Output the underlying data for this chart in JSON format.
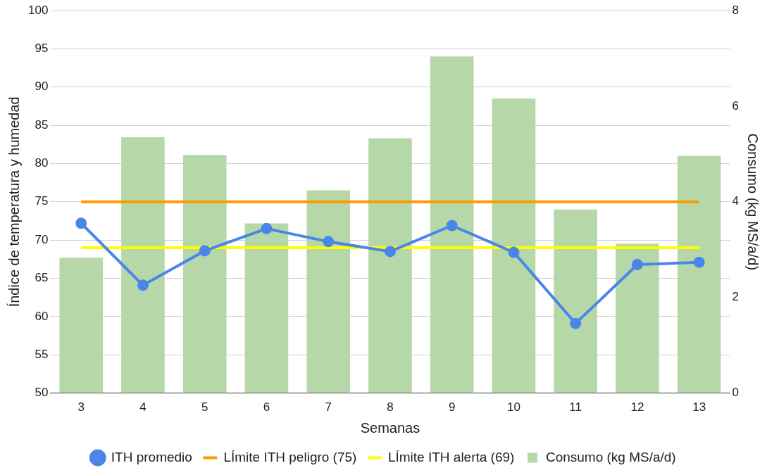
{
  "chart_data": {
    "type": "line",
    "xlabel": "Semanas",
    "ylabel": "Índice de temperatura y humedad",
    "y2label": "Consumo (kg MS/a/d)",
    "categories": [
      "3",
      "4",
      "5",
      "6",
      "7",
      "8",
      "9",
      "10",
      "11",
      "12",
      "13"
    ],
    "series": [
      {
        "name": "ITH promedio",
        "color": "#4a86e8",
        "marker": "circle",
        "values": [
          72.2,
          64.1,
          68.6,
          71.5,
          69.8,
          68.5,
          71.9,
          68.4,
          59.1,
          66.8,
          67.1
        ]
      },
      {
        "name": "LÍmite ITH peligro (75)",
        "color": "#ff9900",
        "marker": "none",
        "values": [
          75,
          75,
          75,
          75,
          75,
          75,
          75,
          75,
          75,
          75,
          75
        ]
      },
      {
        "name": "LÍmite ITH alerta (69)",
        "color": "#ffff00",
        "marker": "none",
        "values": [
          69,
          69,
          69,
          69,
          69,
          69,
          69,
          69,
          69,
          69,
          69
        ]
      },
      {
        "name": "Consumo (kg MS/a/d)",
        "type": "bar",
        "axis": "y2",
        "color": "#b6d7a8",
        "values": [
          2.83,
          5.35,
          4.98,
          3.55,
          4.24,
          5.33,
          7.04,
          6.16,
          3.84,
          3.12,
          4.96
        ]
      }
    ],
    "ylim": [
      50,
      100
    ],
    "yticks": [
      50,
      55,
      60,
      65,
      70,
      75,
      80,
      85,
      90,
      95,
      100
    ],
    "y2lim": [
      0,
      8
    ],
    "y2ticks": [
      0,
      2,
      4,
      6,
      8
    ],
    "grid": "y",
    "legend": "bottom"
  }
}
